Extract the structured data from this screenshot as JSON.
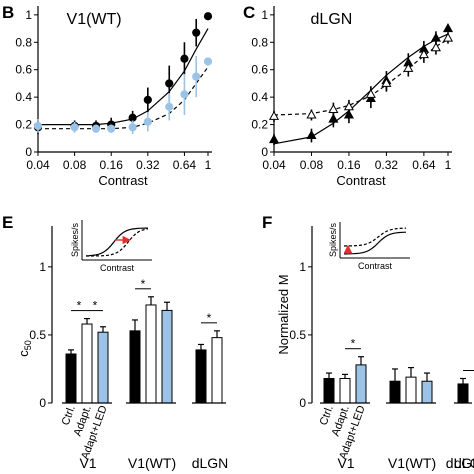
{
  "colors": {
    "black": "#000000",
    "blue": "#9cc3e6",
    "accent_red": "#e0302a"
  },
  "chart_data": [
    {
      "panel": "B",
      "type": "line",
      "title": "V1(WT)",
      "xlabel": "Contrast",
      "ylabel": "",
      "x_scale": "log",
      "x_ticks": [
        "0.04",
        "0.08",
        "0.16",
        "0.32",
        "0.64",
        "1"
      ],
      "y_ticks": [
        "0",
        "0.2",
        "0.4",
        "0.6",
        "0.8",
        "1"
      ],
      "xlim": [
        0.04,
        1
      ],
      "ylim": [
        0,
        1.05
      ],
      "x": [
        0.04,
        0.08,
        0.12,
        0.16,
        0.24,
        0.32,
        0.48,
        0.64,
        0.8,
        1.0
      ],
      "series": [
        {
          "style": "filled-black-circle",
          "values": [
            0.18,
            0.19,
            0.19,
            0.2,
            0.25,
            0.38,
            0.5,
            0.68,
            0.87,
            0.99
          ],
          "errors": [
            0.05,
            0.04,
            0.04,
            0.05,
            0.05,
            0.09,
            0.13,
            0.12,
            0.1,
            0.0
          ],
          "fit": [
            0.2,
            0.2,
            0.2,
            0.21,
            0.24,
            0.3,
            0.44,
            0.59,
            0.75,
            0.9
          ]
        },
        {
          "style": "filled-blue-circle",
          "values": [
            0.19,
            0.18,
            0.17,
            0.17,
            0.18,
            0.22,
            0.33,
            0.42,
            0.55,
            0.66
          ],
          "errors": [
            0.05,
            0.04,
            0.03,
            0.03,
            0.05,
            0.07,
            0.1,
            0.15,
            0.15,
            0.0
          ],
          "fit": [
            0.17,
            0.17,
            0.17,
            0.17,
            0.18,
            0.21,
            0.28,
            0.38,
            0.5,
            0.62
          ]
        }
      ]
    },
    {
      "panel": "C",
      "type": "line",
      "title": "dLGN",
      "xlabel": "Contrast",
      "ylabel": "",
      "x_scale": "log",
      "x_ticks": [
        "0.04",
        "0.08",
        "0.16",
        "0.32",
        "0.64",
        "1"
      ],
      "y_ticks": [
        "0",
        "0.2",
        "0.4",
        "0.6",
        "0.8",
        "1"
      ],
      "xlim": [
        0.04,
        1
      ],
      "ylim": [
        0,
        1.05
      ],
      "x": [
        0.04,
        0.08,
        0.12,
        0.16,
        0.24,
        0.32,
        0.48,
        0.64,
        0.8,
        1.0
      ],
      "series": [
        {
          "style": "filled-black-triangle",
          "values": [
            0.09,
            0.12,
            0.24,
            0.27,
            0.39,
            0.52,
            0.65,
            0.75,
            0.83,
            0.9
          ],
          "errors": [
            0.04,
            0.05,
            0.06,
            0.06,
            0.07,
            0.07,
            0.07,
            0.06,
            0.05,
            0.03
          ],
          "fit": [
            0.06,
            0.11,
            0.21,
            0.3,
            0.45,
            0.56,
            0.69,
            0.77,
            0.82,
            0.86
          ]
        },
        {
          "style": "open-triangle",
          "values": [
            0.26,
            0.27,
            0.31,
            0.33,
            0.42,
            0.5,
            0.61,
            0.71,
            0.76,
            0.83
          ],
          "errors": [
            0.04,
            0.04,
            0.05,
            0.05,
            0.06,
            0.06,
            0.06,
            0.06,
            0.05,
            0.04
          ],
          "fit": [
            0.27,
            0.28,
            0.31,
            0.34,
            0.41,
            0.49,
            0.61,
            0.7,
            0.77,
            0.82
          ]
        }
      ]
    },
    {
      "panel": "E",
      "type": "bar",
      "ylabel": "c50",
      "ylim": [
        0,
        1.3
      ],
      "y_ticks": [
        "0",
        "0.5",
        "1"
      ],
      "groups": [
        {
          "name": "V1",
          "values": [
            0.36,
            0.58,
            0.52
          ],
          "errors": [
            0.03,
            0.04,
            0.04
          ],
          "fills": [
            "#000000",
            "#ffffff",
            "#9cc3e6"
          ]
        },
        {
          "name": "V1(WT)",
          "values": [
            0.53,
            0.72,
            0.68
          ],
          "errors": [
            0.08,
            0.06,
            0.06
          ],
          "fills": [
            "#000000",
            "#ffffff",
            "#9cc3e6"
          ]
        },
        {
          "name": "dLGN",
          "values": [
            0.39,
            0.48
          ],
          "errors": [
            0.04,
            0.05
          ],
          "fills": [
            "#000000",
            "#ffffff"
          ]
        }
      ],
      "significance": [
        {
          "group": 0,
          "from": 0,
          "to": 1,
          "label": "*"
        },
        {
          "group": 0,
          "from": 1,
          "to": 2,
          "label": "*"
        },
        {
          "group": 1,
          "from": 0,
          "to": 1,
          "label": "*"
        },
        {
          "group": 2,
          "from": 0,
          "to": 1,
          "label": "*"
        }
      ],
      "bar_labels": [
        "Ctrl.",
        "Adapt.",
        "Adapt+LED"
      ],
      "bar_label_colors": [
        "#000000",
        "#000000",
        "#6aa9dc"
      ],
      "inset": {
        "ylabel": "Spikes/s",
        "xlabel": "Contrast",
        "arrow": "right"
      }
    },
    {
      "panel": "F",
      "type": "bar",
      "ylabel": "Normalized M",
      "ylim": [
        0,
        1.3
      ],
      "y_ticks": [
        "0",
        "0.5",
        "1"
      ],
      "groups": [
        {
          "name": "V1",
          "values": [
            0.18,
            0.18,
            0.28
          ],
          "errors": [
            0.04,
            0.03,
            0.06
          ],
          "fills": [
            "#000000",
            "#ffffff",
            "#9cc3e6"
          ]
        },
        {
          "name": "V1(WT)",
          "values": [
            0.16,
            0.19,
            0.16
          ],
          "errors": [
            0.09,
            0.07,
            0.06
          ],
          "fills": [
            "#000000",
            "#ffffff",
            "#9cc3e6"
          ]
        },
        {
          "name": "dLGN",
          "values": [
            0.14
          ],
          "errors": [
            0.04
          ],
          "fills": [
            "#000000"
          ]
        }
      ],
      "significance": [
        {
          "group": 0,
          "from": 1,
          "to": 2,
          "label": "*"
        },
        {
          "group": 2,
          "from": 0,
          "to": 1,
          "label": ""
        }
      ],
      "bar_labels": [
        "Ctrl.",
        "Adapt.",
        "Adapt+LED"
      ],
      "bar_label_colors": [
        "#000000",
        "#000000",
        "#6aa9dc"
      ],
      "inset": {
        "ylabel": "Spikes/s",
        "xlabel": "Contrast",
        "arrow": "up"
      },
      "clipped_group_label": "dLG"
    }
  ],
  "panel_letters": {
    "b": "B",
    "c": "C",
    "e": "E",
    "f": "F"
  }
}
